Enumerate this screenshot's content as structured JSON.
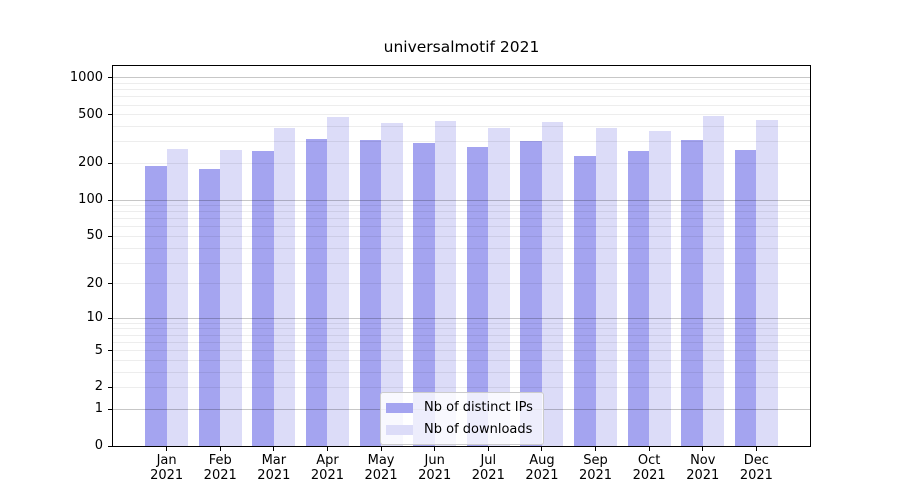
{
  "chart_data": {
    "type": "bar",
    "title": "universalmotif 2021",
    "categories": [
      "Jan 2021",
      "Feb 2021",
      "Mar 2021",
      "Apr 2021",
      "May 2021",
      "Jun 2021",
      "Jul 2021",
      "Aug 2021",
      "Sep 2021",
      "Oct 2021",
      "Nov 2021",
      "Dec 2021"
    ],
    "series": [
      {
        "name": "Nb of distinct IPs",
        "color": "#a4a4f0",
        "values": [
          190,
          180,
          254,
          317,
          311,
          294,
          273,
          305,
          230,
          253,
          311,
          258
        ]
      },
      {
        "name": "Nb of downloads",
        "color": "#dcdcf8",
        "values": [
          262,
          258,
          390,
          483,
          431,
          448,
          388,
          439,
          392,
          371,
          486,
          454
        ]
      }
    ],
    "xlabel": "",
    "ylabel": "",
    "yscale": "log10(value+1)",
    "yticks": [
      0,
      1,
      2,
      5,
      10,
      20,
      50,
      100,
      200,
      500,
      1000
    ],
    "ylim": [
      0,
      1250
    ],
    "grid": "horizontal, log minor + major decade lines",
    "legend_position": "lower center"
  },
  "style": {
    "grid_minor_color": "rgba(0,0,0,0.07)",
    "grid_major_color": "rgba(0,0,0,0.22)",
    "background": "#ffffff",
    "spine_color": "#000000",
    "legend_border_color": "#cccccc"
  }
}
